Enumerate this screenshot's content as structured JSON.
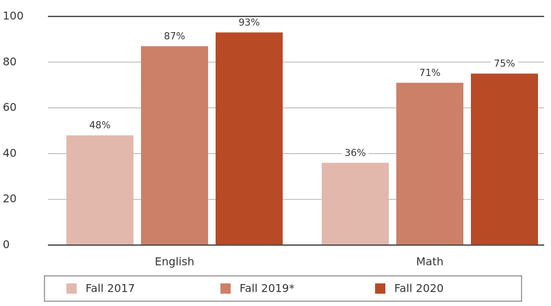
{
  "chart_data": {
    "type": "bar",
    "categories": [
      "English",
      "Math"
    ],
    "series": [
      {
        "name": "Fall 2017",
        "color": "#e3b8ac",
        "values": [
          48,
          36
        ],
        "value_labels": [
          "48%",
          "36%"
        ]
      },
      {
        "name": "Fall 2019*",
        "color": "#cd8068",
        "values": [
          87,
          71
        ],
        "value_labels": [
          "87%",
          "71%"
        ]
      },
      {
        "name": "Fall 2020",
        "color": "#b84a26",
        "values": [
          93,
          75
        ],
        "value_labels": [
          "93%",
          "75%"
        ]
      }
    ],
    "ylim": [
      0,
      100
    ],
    "yticks": [
      0,
      20,
      40,
      60,
      80,
      100
    ],
    "grid": true,
    "legend": "bottom"
  }
}
